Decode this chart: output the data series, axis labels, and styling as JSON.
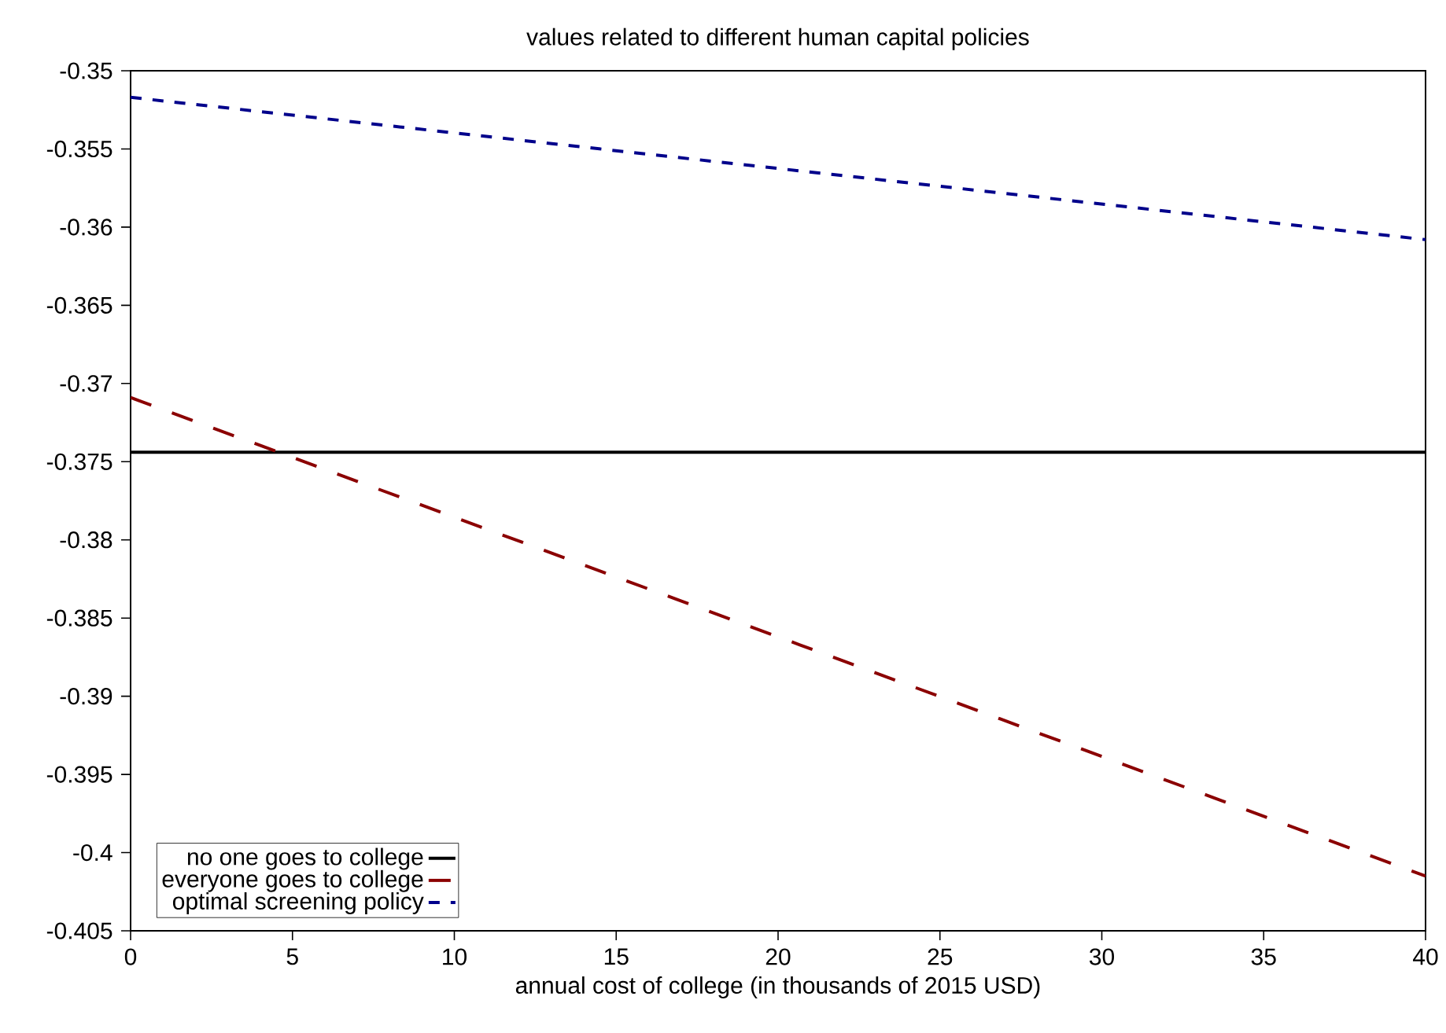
{
  "chart_data": {
    "type": "line",
    "title": "values related to different human capital policies",
    "xlabel": "annual cost of college (in thousands of 2015 USD)",
    "x": [
      0,
      40
    ],
    "series": [
      {
        "name": "no one goes to college",
        "color": "#000000",
        "line_style": "solid",
        "values": [
          -0.3744,
          -0.3744
        ]
      },
      {
        "name": "everyone goes to college",
        "color": "#8b0000",
        "line_style": "dashed",
        "values": [
          -0.3709,
          -0.4015
        ]
      },
      {
        "name": "optimal screening policy",
        "color": "#00008b",
        "line_style": "dotted",
        "values": [
          -0.3517,
          -0.3608
        ]
      }
    ],
    "xlim": [
      0,
      40
    ],
    "ylim": [
      -0.405,
      -0.35
    ],
    "xticks": [
      0,
      5,
      10,
      15,
      20,
      25,
      30,
      35,
      40
    ],
    "yticks": [
      -0.405,
      -0.4,
      -0.395,
      -0.39,
      -0.385,
      -0.38,
      -0.375,
      -0.37,
      -0.365,
      -0.36,
      -0.355,
      -0.35
    ],
    "legend": "bottom left"
  }
}
